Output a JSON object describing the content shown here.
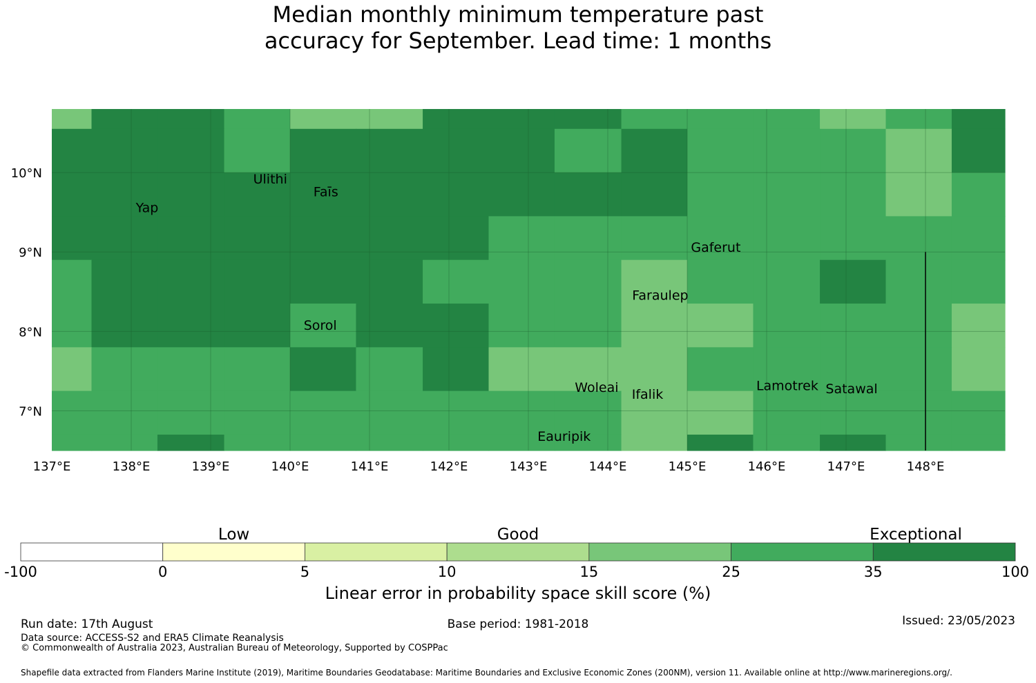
{
  "title": {
    "line1": "Median monthly minimum temperature past",
    "line2": "accuracy for September. Lead time: 1 months"
  },
  "chart_data": {
    "type": "heatmap",
    "lon_range": [
      137,
      149
    ],
    "lat_range": [
      6.5,
      10.8
    ],
    "lon_ticks": [
      "137°E",
      "138°E",
      "139°E",
      "140°E",
      "141°E",
      "142°E",
      "143°E",
      "144°E",
      "145°E",
      "146°E",
      "147°E",
      "148°E"
    ],
    "lat_ticks": [
      "10°N",
      "9°N",
      "8°N",
      "7°N"
    ],
    "grid": true,
    "lon_edges": [
      137,
      137.5,
      138.33,
      139.17,
      140,
      140.83,
      141.67,
      142.5,
      143.33,
      144.17,
      145,
      145.83,
      146.67,
      147.5,
      148.33,
      149
    ],
    "lat_edges_top_to_bottom": [
      10.8,
      10.55,
      10.0,
      9.45,
      8.9,
      8.35,
      7.8,
      7.25,
      6.7,
      6.5
    ],
    "cell_classes_top_to_bottom": [
      [
        4,
        6,
        6,
        5,
        4,
        4,
        6,
        6,
        6,
        5,
        5,
        5,
        4,
        5,
        6
      ],
      [
        6,
        6,
        6,
        5,
        6,
        6,
        6,
        6,
        5,
        6,
        5,
        5,
        5,
        4,
        6
      ],
      [
        6,
        6,
        6,
        6,
        6,
        6,
        6,
        6,
        6,
        6,
        5,
        5,
        5,
        4,
        5
      ],
      [
        6,
        6,
        6,
        6,
        6,
        6,
        6,
        5,
        5,
        5,
        5,
        5,
        5,
        5,
        5
      ],
      [
        5,
        6,
        6,
        6,
        6,
        6,
        5,
        5,
        5,
        4,
        5,
        5,
        6,
        5,
        5
      ],
      [
        5,
        6,
        6,
        6,
        5,
        6,
        6,
        5,
        5,
        4,
        4,
        5,
        5,
        5,
        4
      ],
      [
        4,
        5,
        5,
        5,
        6,
        5,
        6,
        4,
        4,
        4,
        5,
        5,
        5,
        5,
        4
      ],
      [
        5,
        5,
        5,
        5,
        5,
        5,
        5,
        5,
        5,
        4,
        4,
        5,
        5,
        5,
        5
      ],
      [
        5,
        5,
        6,
        5,
        5,
        5,
        5,
        5,
        5,
        4,
        6,
        5,
        6,
        5,
        5
      ]
    ],
    "places": [
      {
        "name": "Ulithi",
        "lon": 139.75,
        "lat": 9.86
      },
      {
        "name": "Faīs",
        "lon": 140.45,
        "lat": 9.7
      },
      {
        "name": "Yap",
        "lon": 138.2,
        "lat": 9.5
      },
      {
        "name": "Gaferut",
        "lon": 145.36,
        "lat": 9.0
      },
      {
        "name": "Faraulep",
        "lon": 144.66,
        "lat": 8.4
      },
      {
        "name": "Sorol",
        "lon": 140.38,
        "lat": 8.02
      },
      {
        "name": "Woleai",
        "lon": 143.86,
        "lat": 7.24
      },
      {
        "name": "Ifalik",
        "lon": 144.5,
        "lat": 7.15
      },
      {
        "name": "Lamotrek",
        "lon": 146.26,
        "lat": 7.26
      },
      {
        "name": "Satawal",
        "lon": 147.07,
        "lat": 7.22
      },
      {
        "name": "Eauripik",
        "lon": 143.45,
        "lat": 6.62
      }
    ],
    "boundary_line": {
      "lon": 148.0,
      "lat_from": 6.5,
      "lat_to": 9.0
    },
    "colorbar": {
      "ticks": [
        "-100",
        "0",
        "5",
        "10",
        "15",
        "25",
        "35",
        "100"
      ],
      "colors": [
        "#ffffff",
        "#ffffcc",
        "#d9f0a3",
        "#addd8e",
        "#78c679",
        "#41ab5d",
        "#238443"
      ],
      "categories": [
        {
          "label": "Low",
          "under_bin": 1.5
        },
        {
          "label": "Good",
          "under_bin": 3.5
        },
        {
          "label": "Exceptional",
          "under_bin": 6.3
        }
      ],
      "label": "Linear error in probability space skill score (%)"
    }
  },
  "footer": {
    "run_date": "Run date: 17th August",
    "base_period": "Base period: 1981-2018",
    "issued": "Issued: 23/05/2023",
    "data_source": "Data source: ACCESS-S2 and ERA5 Climate Reanalysis",
    "copyright": "© Commonwealth of Australia 2023, Australian Bureau of Meteorology, Supported by COSPPac",
    "shapefile": "Shapefile data extracted from Flanders Marine Institute (2019), Maritime Boundaries Geodatabase: Maritime Boundaries and Exclusive Economic Zones (200NM), version 11. Available online at http://www.marineregions.org/."
  }
}
